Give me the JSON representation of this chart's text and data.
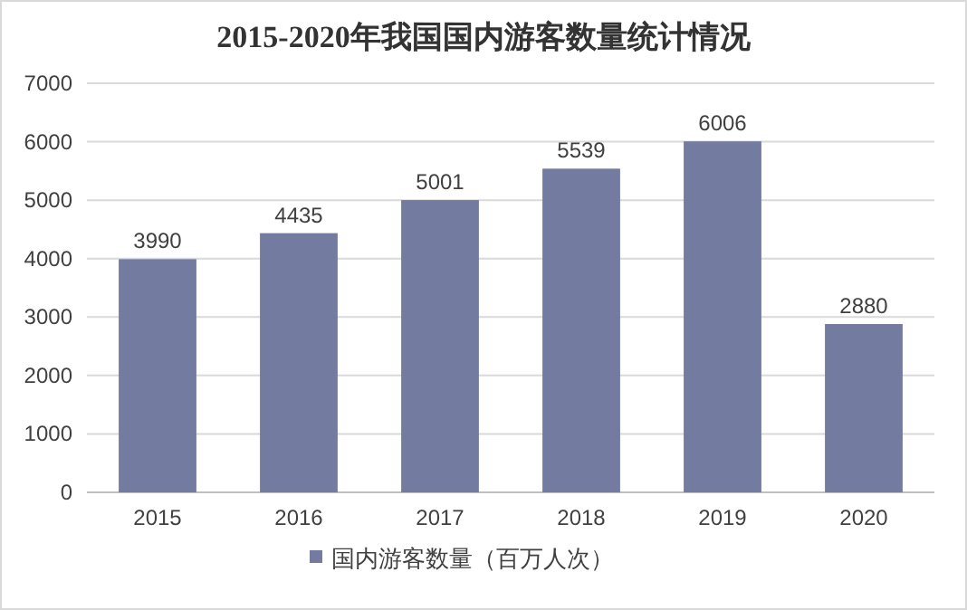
{
  "chart_data": {
    "type": "bar",
    "title": "2015-2020年我国国内游客数量统计情况",
    "categories": [
      "2015",
      "2016",
      "2017",
      "2018",
      "2019",
      "2020"
    ],
    "series": [
      {
        "name": "国内游客数量（百万人次）",
        "color": "#737ba0",
        "values": [
          3990,
          4435,
          5001,
          5539,
          6006,
          2880
        ]
      }
    ],
    "ylim": [
      0,
      7000
    ],
    "yticks": [
      0,
      1000,
      2000,
      3000,
      4000,
      5000,
      6000,
      7000
    ],
    "grid": "y",
    "legend": "bottom",
    "data_labels": true
  }
}
